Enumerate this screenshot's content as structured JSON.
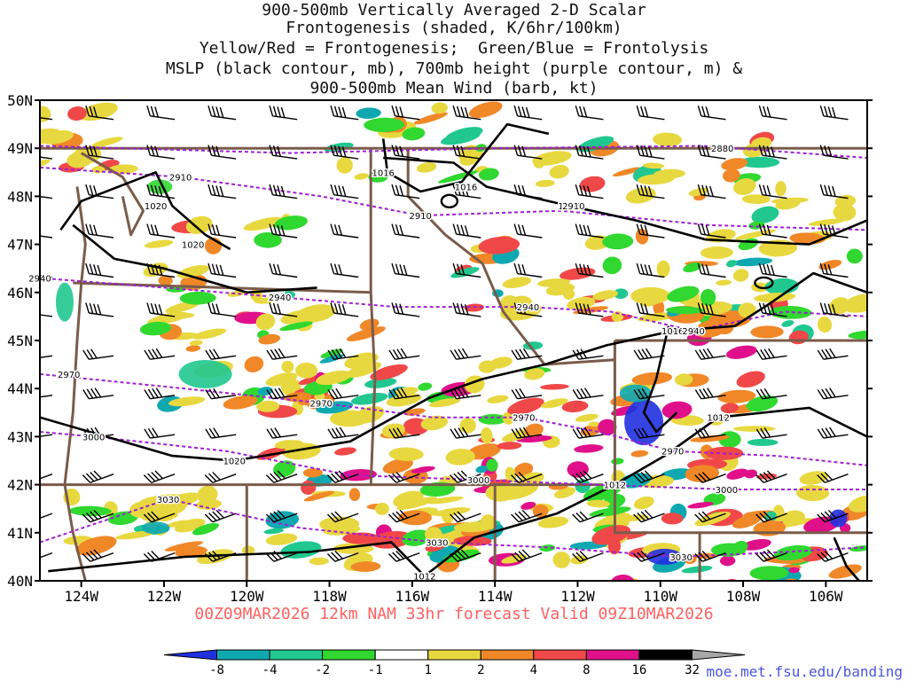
{
  "title_lines": [
    "900-500mb Vertically Averaged 2-D Scalar",
    "Frontogenesis (shaded, K/6hr/100km)",
    "Yellow/Red = Frontogenesis;  Green/Blue = Frontolysis",
    "MSLP (black contour, mb), 700mb height (purple contour, m) &",
    "900-500mb Mean Wind (barb, kt)"
  ],
  "forecast_label": "00Z09MAR2026 12km NAM 33hr forecast Valid 09Z10MAR2026",
  "credit": "moe.met.fsu.edu/banding",
  "colors": {
    "frame": "#000000",
    "borders": "#7a5c4a",
    "mslp": "#000000",
    "height700": "#a020d0",
    "barb": "#000000",
    "forecast_text": "#ff6060",
    "credit_text": "#4a55d8"
  },
  "chart_data": {
    "type": "heatmap",
    "map_extent": {
      "lon": [
        -125,
        -105
      ],
      "lat": [
        40,
        50
      ]
    },
    "lat_ticks": [
      "40N",
      "41N",
      "42N",
      "43N",
      "44N",
      "45N",
      "46N",
      "47N",
      "48N",
      "49N",
      "50N"
    ],
    "lon_ticks": [
      "124W",
      "122W",
      "120W",
      "118W",
      "116W",
      "114W",
      "112W",
      "110W",
      "108W",
      "106W"
    ],
    "colorbar": {
      "labels": [
        "-8",
        "-4",
        "-2",
        "-1",
        "1",
        "2",
        "4",
        "8",
        "16",
        "32"
      ],
      "colors": [
        "#2030e0",
        "#10a8b0",
        "#20c890",
        "#30d830",
        "#ffffff",
        "#e8d840",
        "#f08828",
        "#f04848",
        "#e0108a",
        "#000000",
        "#a8a8a8"
      ]
    },
    "mslp_contours_mb": [
      {
        "value": "1016",
        "label_points": [
          [
            -116.7,
            48.5
          ],
          [
            -114.7,
            48.2
          ],
          [
            -112.2,
            47.8
          ],
          [
            -109.7,
            45.2
          ]
        ]
      },
      {
        "value": "1020",
        "label_points": [
          [
            -122.2,
            47.8
          ],
          [
            -121.3,
            47.0
          ],
          [
            -120.3,
            42.5
          ]
        ]
      },
      {
        "value": "1012",
        "label_points": [
          [
            -108.6,
            43.4
          ],
          [
            -111.1,
            42.0
          ],
          [
            -115.7,
            40.1
          ]
        ]
      }
    ],
    "height700_contours_m": [
      {
        "value": "2880",
        "label_points": [
          [
            -108.5,
            49.0
          ]
        ]
      },
      {
        "value": "2910",
        "label_points": [
          [
            -121.6,
            48.4
          ],
          [
            -115.8,
            47.6
          ],
          [
            -112.1,
            47.8
          ]
        ]
      },
      {
        "value": "2940",
        "label_points": [
          [
            -125.0,
            46.3
          ],
          [
            -119.2,
            45.9
          ],
          [
            -113.2,
            45.7
          ],
          [
            -109.2,
            45.2
          ]
        ]
      },
      {
        "value": "2970",
        "label_points": [
          [
            -124.3,
            44.3
          ],
          [
            -118.2,
            43.7
          ],
          [
            -113.3,
            43.4
          ],
          [
            -109.7,
            42.7
          ]
        ]
      },
      {
        "value": "3000",
        "label_points": [
          [
            -123.7,
            43.0
          ],
          [
            -114.4,
            42.1
          ],
          [
            -108.4,
            41.9
          ]
        ]
      },
      {
        "value": "3030",
        "label_points": [
          [
            -121.9,
            41.7
          ],
          [
            -115.4,
            40.8
          ],
          [
            -109.5,
            40.5
          ]
        ]
      }
    ],
    "wind_barbs": "900-500mb mean wind, predominantly westerly to southwesterly, 30-50 kt across domain"
  }
}
